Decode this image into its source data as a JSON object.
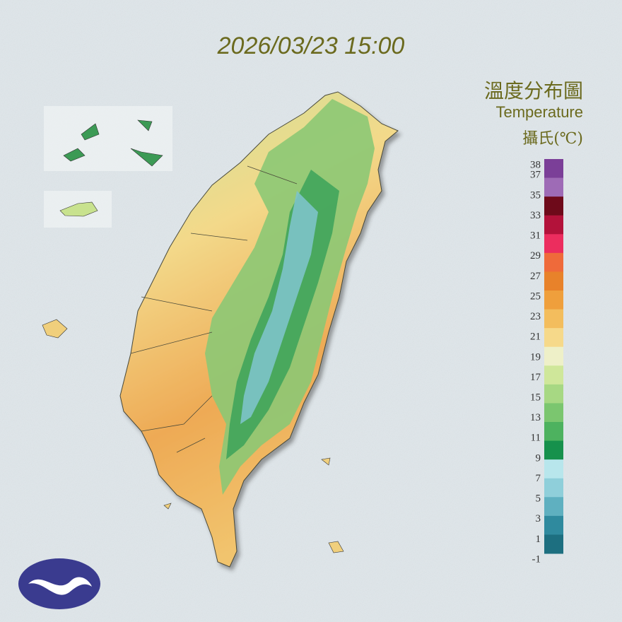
{
  "header": {
    "timestamp": "2026/03/23 15:00"
  },
  "legend": {
    "title": "溫度分布圖",
    "subtitle": "Temperature",
    "unit": "攝氏(℃)",
    "labels": [
      38,
      37,
      35,
      33,
      31,
      29,
      27,
      25,
      23,
      21,
      19,
      17,
      15,
      13,
      11,
      9,
      7,
      5,
      3,
      1,
      -1
    ],
    "colors": [
      "#7b3f98",
      "#9e6bb6",
      "#6e0a1a",
      "#b3123a",
      "#ec2d5e",
      "#ef6a3a",
      "#e8822a",
      "#ef9f3c",
      "#f3bd5d",
      "#f6d98a",
      "#eef0c8",
      "#cfe79a",
      "#a7d883",
      "#7bc66f",
      "#4db25f",
      "#16914c",
      "#b8e6ec",
      "#8fcfda",
      "#5fb0c0",
      "#2f8a9e",
      "#1d6f80"
    ]
  }
}
